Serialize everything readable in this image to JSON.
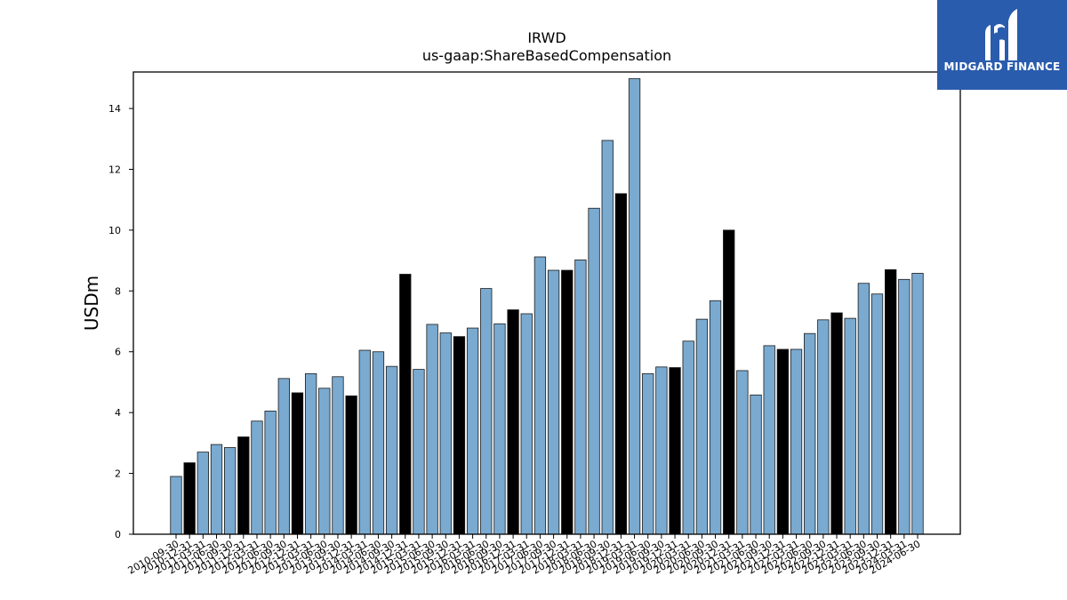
{
  "chart_data": {
    "type": "bar",
    "title": "IRWD",
    "subtitle": "us-gaap:ShareBasedCompensation",
    "ylabel": "USDm",
    "xlabel": "",
    "ylim": [
      0,
      15.2
    ],
    "yticks": [
      0,
      2,
      4,
      6,
      8,
      10,
      12,
      14
    ],
    "colors": {
      "quarter": "#7aaad0",
      "annual": "#000000",
      "edge": "#1a1a1a"
    },
    "categories": [
      "2010-09-30",
      "2010-12-31",
      "2011-03-31",
      "2011-06-30",
      "2011-09-30",
      "2011-12-31",
      "2012-03-31",
      "2012-06-30",
      "2012-09-30",
      "2012-12-31",
      "2013-03-31",
      "2013-06-30",
      "2013-09-30",
      "2013-12-31",
      "2014-03-31",
      "2014-06-30",
      "2014-09-30",
      "2014-12-31",
      "2015-03-31",
      "2015-06-30",
      "2015-09-30",
      "2015-12-31",
      "2016-03-31",
      "2016-06-30",
      "2016-09-30",
      "2016-12-31",
      "2017-03-31",
      "2017-06-30",
      "2017-09-30",
      "2017-12-31",
      "2018-03-31",
      "2018-06-30",
      "2018-09-30",
      "2018-12-31",
      "2019-03-31",
      "2019-06-30",
      "2019-09-30",
      "2019-12-31",
      "2020-03-31",
      "2020-06-30",
      "2020-09-30",
      "2020-12-31",
      "2021-03-31",
      "2021-06-30",
      "2021-09-30",
      "2021-12-31",
      "2022-03-31",
      "2022-06-30",
      "2022-09-30",
      "2022-12-31",
      "2023-03-31",
      "2023-06-30",
      "2023-09-30",
      "2023-12-31",
      "2024-03-31",
      "2024-06-30"
    ],
    "values": [
      1.9,
      2.35,
      2.7,
      2.95,
      2.85,
      3.2,
      3.72,
      4.05,
      5.12,
      4.65,
      5.28,
      4.8,
      5.18,
      4.55,
      6.05,
      6.0,
      5.52,
      8.55,
      5.42,
      6.9,
      6.62,
      6.5,
      6.78,
      8.08,
      6.92,
      7.38,
      7.25,
      9.12,
      8.68,
      8.68,
      9.02,
      10.72,
      12.95,
      11.2,
      14.98,
      5.28,
      5.5,
      5.48,
      6.35,
      7.07,
      7.68,
      10.0,
      5.38,
      4.58,
      6.2,
      6.08,
      6.08,
      6.6,
      7.05,
      7.28,
      7.1,
      8.25,
      7.9,
      8.7,
      8.38,
      8.58
    ],
    "annual": [
      false,
      true,
      false,
      false,
      false,
      true,
      false,
      false,
      false,
      true,
      false,
      false,
      false,
      true,
      false,
      false,
      false,
      true,
      false,
      false,
      false,
      true,
      false,
      false,
      false,
      true,
      false,
      false,
      false,
      true,
      false,
      false,
      false,
      true,
      false,
      false,
      false,
      true,
      false,
      false,
      false,
      true,
      false,
      false,
      false,
      true,
      false,
      false,
      false,
      true,
      false,
      false,
      false,
      true,
      false,
      false
    ],
    "legend": "none",
    "grid": false
  },
  "logo": {
    "text": "MIDGARD FINANCE",
    "icon": "midgard-logo-icon"
  }
}
